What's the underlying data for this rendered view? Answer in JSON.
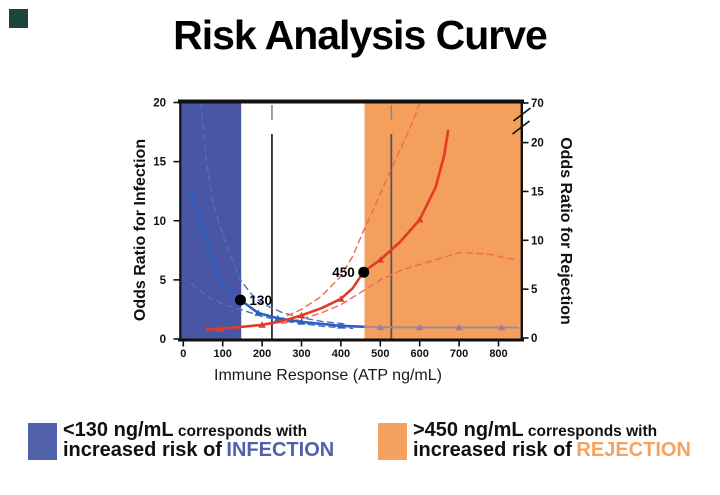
{
  "slide": {
    "title": "Risk Analysis Curve"
  },
  "chart_data": {
    "type": "line",
    "title": "Risk Analysis Curve",
    "xlabel": "Immune Response (ATP ng/mL)",
    "ylabel_left": "Odds Ratio for Infection",
    "ylabel_right": "Odds Ratio for Rejection",
    "x_ticks": [
      0,
      100,
      200,
      300,
      400,
      500,
      600,
      700,
      800
    ],
    "y_ticks_left": [
      0,
      5,
      10,
      15,
      20
    ],
    "y_ticks_right": [
      0,
      5,
      10,
      15,
      20,
      70
    ],
    "right_axis_break": true,
    "ylim_left": [
      0,
      20
    ],
    "xlim": [
      -10,
      860
    ],
    "grid": false,
    "shaded_regions": [
      {
        "name": "infection-risk-region",
        "x_from": -10,
        "x_to": 147,
        "color": "#4956a3"
      },
      {
        "name": "rejection-risk-region",
        "x_from": 460,
        "x_to": 860,
        "color": "#f4a05c"
      }
    ],
    "vertical_lines_x": [
      225,
      528
    ],
    "threshold_dots": [
      {
        "label": "130",
        "x": 145,
        "y": 3.3,
        "label_side": "right"
      },
      {
        "label": "450",
        "x": 458,
        "y": 5.65,
        "label_side": "left"
      }
    ],
    "series": [
      {
        "name": "infection-ci-upper",
        "color": "#4a6fc5",
        "width": 1.4,
        "dash": true,
        "points": [
          [
            45,
            20
          ],
          [
            58,
            15.2
          ],
          [
            75,
            11.5
          ],
          [
            100,
            8.8
          ],
          [
            125,
            6.6
          ],
          [
            145,
            5.0
          ],
          [
            175,
            3.7
          ],
          [
            200,
            3.0
          ],
          [
            250,
            2.25
          ],
          [
            300,
            1.8
          ],
          [
            350,
            1.5
          ],
          [
            410,
            1.28
          ]
        ]
      },
      {
        "name": "infection-ci-lower",
        "color": "#4a6fc5",
        "width": 1.4,
        "dash": true,
        "points": [
          [
            20,
            4.7
          ],
          [
            60,
            3.6
          ],
          [
            100,
            2.95
          ],
          [
            145,
            2.5
          ],
          [
            200,
            1.9
          ],
          [
            250,
            1.55
          ],
          [
            300,
            1.3
          ],
          [
            360,
            1.05
          ],
          [
            430,
            0.9
          ]
        ]
      },
      {
        "name": "rejection-ci-upper",
        "color": "#ee6a55",
        "width": 1.4,
        "dash": true,
        "points": [
          [
            240,
            1.6
          ],
          [
            300,
            2.5
          ],
          [
            350,
            3.6
          ],
          [
            400,
            5.3
          ],
          [
            430,
            7.0
          ],
          [
            458,
            9.2
          ],
          [
            487,
            11.3
          ],
          [
            540,
            15.3
          ],
          [
            575,
            17.8
          ],
          [
            600,
            19.9
          ]
        ]
      },
      {
        "name": "rejection-ci-lower",
        "color": "#ee6a55",
        "width": 1.4,
        "dash": true,
        "points": [
          [
            250,
            1.3
          ],
          [
            300,
            1.7
          ],
          [
            350,
            2.2
          ],
          [
            400,
            2.9
          ],
          [
            458,
            4.1
          ],
          [
            500,
            5.0
          ],
          [
            560,
            5.9
          ],
          [
            620,
            6.5
          ],
          [
            700,
            7.3
          ],
          [
            770,
            7.2
          ],
          [
            845,
            6.7
          ]
        ]
      },
      {
        "name": "infection-odds",
        "color": "#2b5fc0",
        "width": 2.6,
        "dash": false,
        "points": [
          [
            20,
            12.3
          ],
          [
            50,
            9.2
          ],
          [
            75,
            6.5
          ],
          [
            100,
            4.6
          ],
          [
            145,
            3.3
          ],
          [
            190,
            2.2
          ],
          [
            240,
            1.75
          ],
          [
            300,
            1.45
          ],
          [
            400,
            1.12
          ],
          [
            460,
            1.03
          ]
        ],
        "markers": [
          [
            20,
            12.3
          ],
          [
            50,
            9.2
          ],
          [
            100,
            4.6
          ],
          [
            190,
            2.2
          ],
          [
            240,
            1.75
          ],
          [
            300,
            1.45
          ],
          [
            400,
            1.12
          ]
        ]
      },
      {
        "name": "infection-odds-faded-tail",
        "color": "#9f8aa0",
        "width": 2,
        "dash": false,
        "points": [
          [
            460,
            1.03
          ],
          [
            500,
            1.0
          ],
          [
            600,
            0.98
          ],
          [
            700,
            0.97
          ],
          [
            850,
            0.97
          ]
        ],
        "markers": [
          [
            500,
            1.0
          ],
          [
            600,
            0.98
          ],
          [
            700,
            0.97
          ],
          [
            808,
            0.97
          ]
        ],
        "marker_color": "#96819b"
      },
      {
        "name": "rejection-odds",
        "color": "#e23b27",
        "width": 2.6,
        "dash": false,
        "points": [
          [
            60,
            0.82
          ],
          [
            95,
            0.85
          ],
          [
            140,
            1.0
          ],
          [
            200,
            1.2
          ],
          [
            250,
            1.5
          ],
          [
            300,
            2.0
          ],
          [
            350,
            2.6
          ],
          [
            400,
            3.4
          ],
          [
            430,
            4.3
          ],
          [
            458,
            5.7
          ],
          [
            500,
            6.7
          ],
          [
            550,
            8.2
          ],
          [
            600,
            10.1
          ],
          [
            640,
            12.8
          ],
          [
            662,
            15.5
          ],
          [
            672,
            17.6
          ]
        ],
        "markers": [
          [
            95,
            0.85
          ],
          [
            200,
            1.2
          ],
          [
            300,
            2.0
          ],
          [
            400,
            3.4
          ],
          [
            500,
            6.7
          ],
          [
            600,
            10.1
          ]
        ]
      }
    ]
  },
  "legend": {
    "infection": {
      "swatch_color": "#5161ab",
      "value": "<130 ng/mL",
      "qualifier": " corresponds with",
      "line2": "increased risk of",
      "risk": "INFECTION",
      "risk_color": "#5161ab"
    },
    "rejection": {
      "swatch_color": "#f5a261",
      "value": ">450 ng/mL",
      "qualifier": " corresponds with",
      "line2": "increased risk of",
      "risk": "REJECTION",
      "risk_color": "#f5a360"
    }
  }
}
